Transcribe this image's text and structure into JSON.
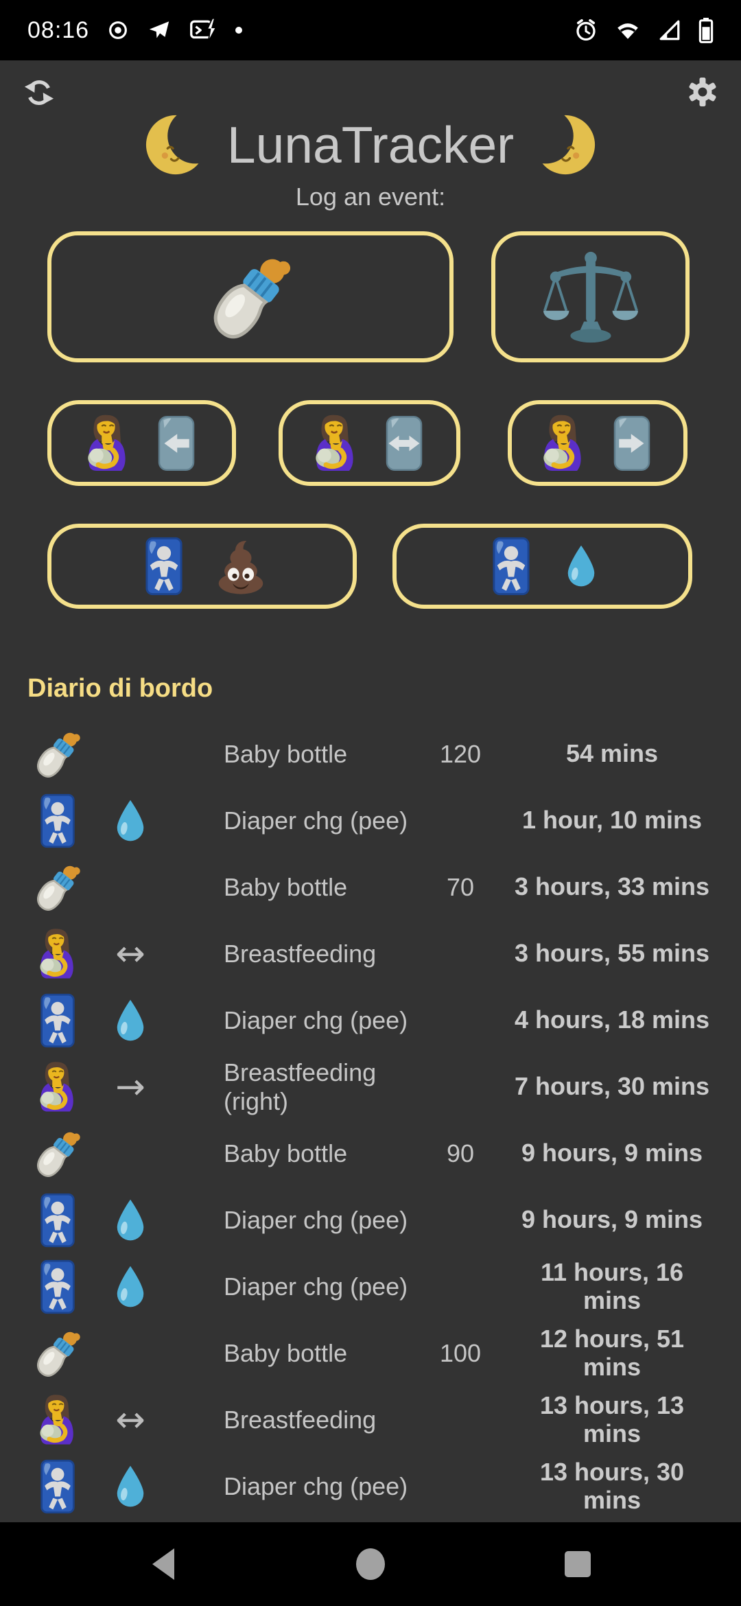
{
  "status_bar": {
    "time": "08:16",
    "icons_left": [
      "record-icon",
      "telegram-icon",
      "messages-icon",
      "notification-dot-icon"
    ],
    "icons_right": [
      "alarm-icon",
      "wifi-icon",
      "signal-icon",
      "battery-icon"
    ]
  },
  "header": {
    "title": "LunaTracker",
    "subtitle": "Log an event:",
    "left_icon": "sync-icon",
    "right_icon": "gear-icon",
    "moon_left": "moon-left-icon",
    "moon_right": "moon-right-icon"
  },
  "log_buttons": [
    {
      "name": "baby-bottle",
      "row": 1,
      "icons": [
        "bottle"
      ]
    },
    {
      "name": "weight-scales",
      "row": 1,
      "icons": [
        "scales"
      ]
    },
    {
      "name": "breastfeeding-left",
      "row": 2,
      "icons": [
        "mother",
        "sign-arrow-left"
      ]
    },
    {
      "name": "breastfeeding-both",
      "row": 2,
      "icons": [
        "mother",
        "sign-arrow-both"
      ]
    },
    {
      "name": "breastfeeding-right",
      "row": 2,
      "icons": [
        "mother",
        "sign-arrow-right"
      ]
    },
    {
      "name": "diaper-poop",
      "row": 3,
      "icons": [
        "baby-sign",
        "poop"
      ]
    },
    {
      "name": "diaper-pee",
      "row": 3,
      "icons": [
        "baby-sign",
        "droplet"
      ]
    }
  ],
  "journal": {
    "heading": "Diario di bordo",
    "rows": [
      {
        "icons": [
          "bottle"
        ],
        "label": "Baby bottle",
        "qty": "120",
        "time": "54 mins"
      },
      {
        "icons": [
          "baby-sign",
          "droplet"
        ],
        "label": "Diaper chg (pee)",
        "qty": "",
        "time": "1 hour, 10 mins"
      },
      {
        "icons": [
          "bottle"
        ],
        "label": "Baby bottle",
        "qty": "70",
        "time": "3 hours, 33 mins"
      },
      {
        "icons": [
          "mother",
          "arrow-both-text"
        ],
        "label": "Breastfeeding",
        "qty": "",
        "time": "3 hours, 55 mins"
      },
      {
        "icons": [
          "baby-sign",
          "droplet"
        ],
        "label": "Diaper chg (pee)",
        "qty": "",
        "time": "4 hours, 18 mins"
      },
      {
        "icons": [
          "mother",
          "arrow-right-text"
        ],
        "label": "Breastfeeding (right)",
        "qty": "",
        "time": "7 hours, 30 mins"
      },
      {
        "icons": [
          "bottle"
        ],
        "label": "Baby bottle",
        "qty": "90",
        "time": "9 hours, 9 mins"
      },
      {
        "icons": [
          "baby-sign",
          "droplet"
        ],
        "label": "Diaper chg (pee)",
        "qty": "",
        "time": "9 hours, 9 mins"
      },
      {
        "icons": [
          "baby-sign",
          "droplet"
        ],
        "label": "Diaper chg (pee)",
        "qty": "",
        "time": "11 hours, 16 mins"
      },
      {
        "icons": [
          "bottle"
        ],
        "label": "Baby bottle",
        "qty": "100",
        "time": "12 hours, 51 mins"
      },
      {
        "icons": [
          "mother",
          "arrow-both-text"
        ],
        "label": "Breastfeeding",
        "qty": "",
        "time": "13 hours, 13 mins"
      },
      {
        "icons": [
          "baby-sign",
          "droplet"
        ],
        "label": "Diaper chg (pee)",
        "qty": "",
        "time": "13 hours, 30 mins"
      }
    ]
  },
  "nav_bar": {
    "icons": [
      "back-icon",
      "home-icon",
      "recents-icon"
    ]
  },
  "icons": {
    "glyphs": {
      "arrow-both-text": "↔",
      "arrow-right-text": "→"
    }
  },
  "colors": {
    "background": "#333333",
    "bars": "#000000",
    "accent_border": "#f5e18c",
    "heading_yellow": "#f6dd85",
    "text": "#c6c6c6",
    "title": "#c8c8c8"
  }
}
